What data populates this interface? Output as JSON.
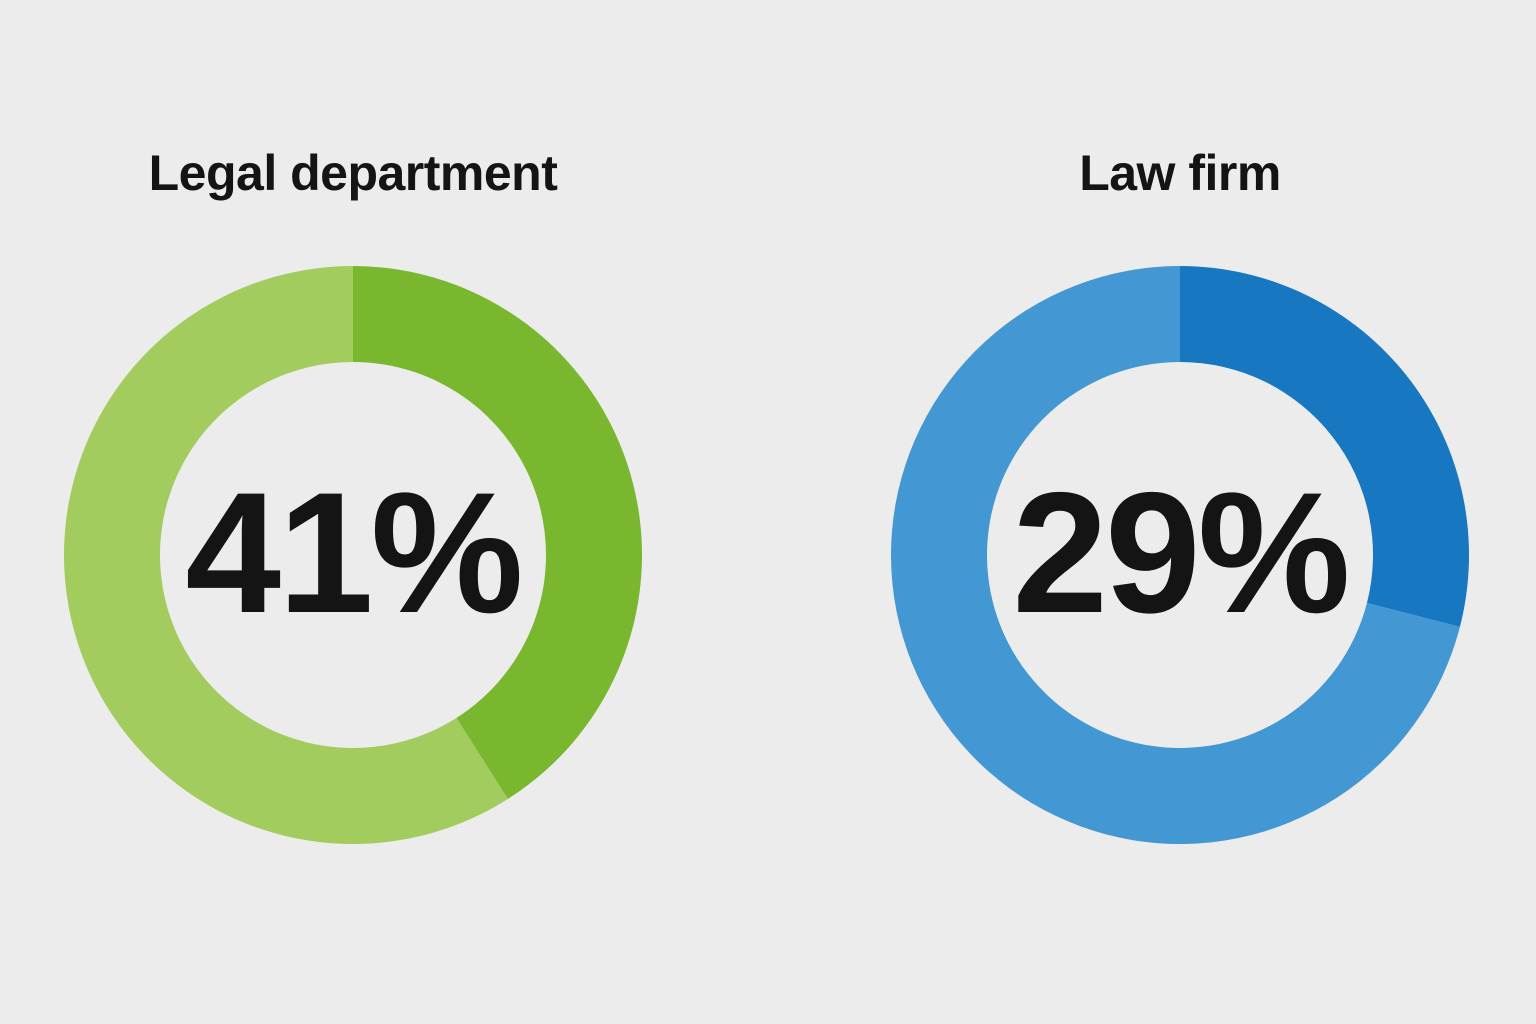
{
  "page": {
    "background_color": "#ececec",
    "text_color": "#141414"
  },
  "chart_data": [
    {
      "type": "pie",
      "donut": true,
      "title": "Legal department",
      "center_label": "41%",
      "values": [
        41,
        59
      ],
      "segment_names": [
        "highlighted-share",
        "remainder"
      ],
      "colors": [
        "#79b72f",
        "#a3cc5e"
      ],
      "start_angle_deg": 0,
      "direction": "clockwise",
      "legend": "none"
    },
    {
      "type": "pie",
      "donut": true,
      "title": "Law firm",
      "center_label": "29%",
      "values": [
        29,
        71
      ],
      "segment_names": [
        "highlighted-share",
        "remainder"
      ],
      "colors": [
        "#1777c1",
        "#4398d3"
      ],
      "start_angle_deg": 0,
      "direction": "clockwise",
      "legend": "none"
    }
  ]
}
